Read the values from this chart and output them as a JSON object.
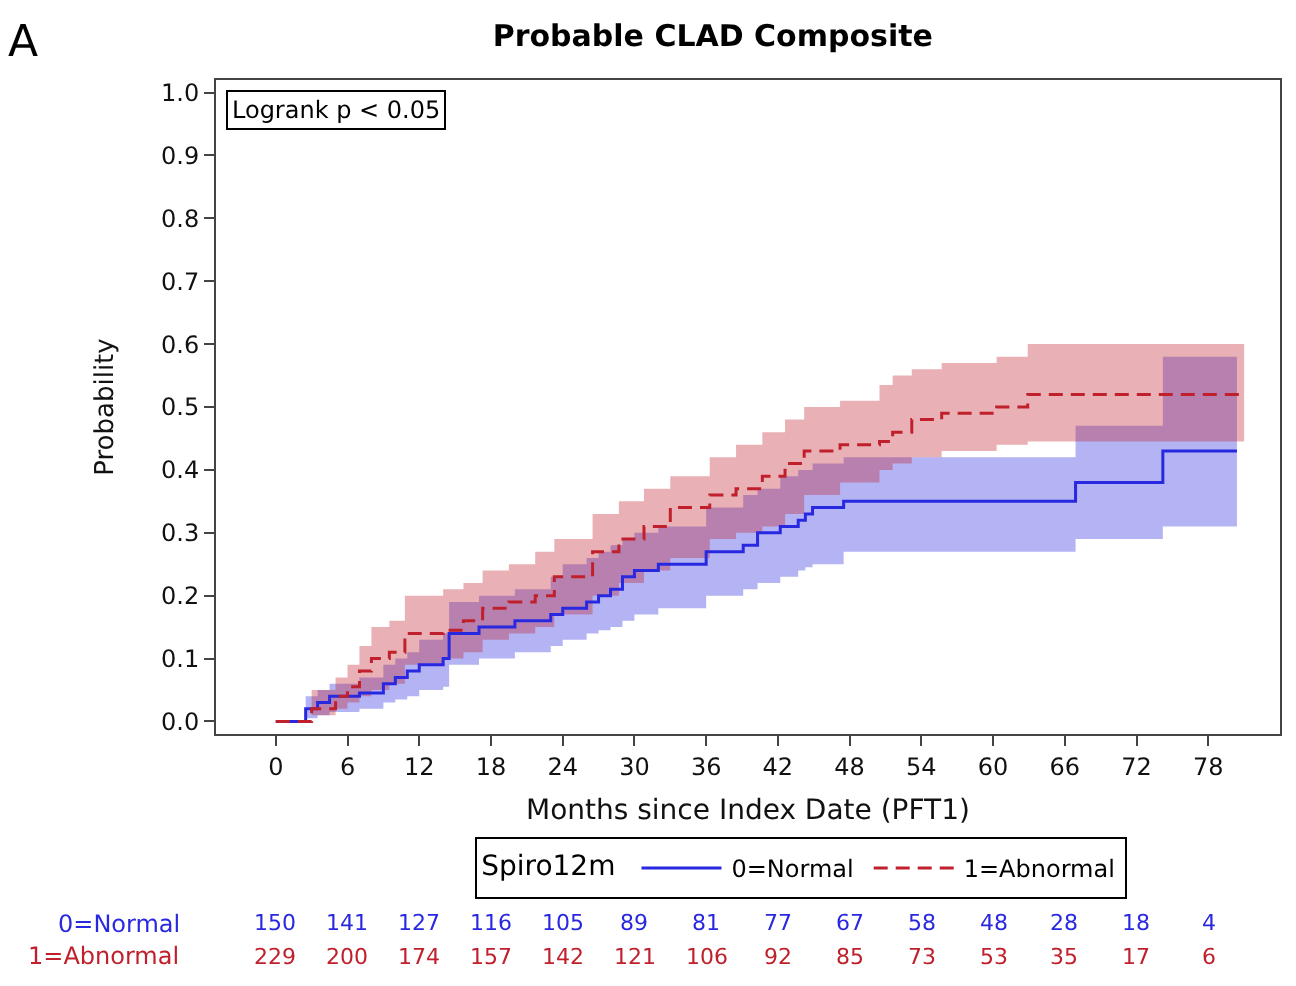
{
  "chart_data": {
    "type": "step",
    "title": "Probable CLAD Composite",
    "xlabel": "Months since Index Date (PFT1)",
    "ylabel": "Probability",
    "legend_title": "Spiro12m",
    "legend": "bottom",
    "xlim": [
      -5,
      84
    ],
    "xticks": [
      0,
      6,
      12,
      18,
      24,
      30,
      36,
      42,
      48,
      54,
      60,
      66,
      72,
      78
    ],
    "ylim": [
      -0.02,
      1.02
    ],
    "yticks": [
      {
        "value": 0,
        "label": "0.0"
      },
      0.1,
      0.2,
      0.3,
      0.4,
      0.5,
      0.6,
      0.7,
      0.8,
      0.9,
      {
        "value": 1,
        "label": "1.0"
      }
    ],
    "series": [
      {
        "name": "0=Normal",
        "color": "#2828e0",
        "line_style": "solid",
        "x": [
          0,
          2.3,
          2.5,
          3.5,
          4.5,
          7,
          9,
          10,
          11,
          12,
          14,
          14.5,
          17,
          20,
          23,
          24,
          26,
          27,
          28,
          29,
          30,
          32,
          36,
          39.1,
          40.3,
          42.2,
          43.7,
          44.3,
          44.9,
          47.5,
          66.9,
          74.2,
          80.4
        ],
        "values": [
          0,
          0,
          0.02,
          0.03,
          0.04,
          0.045,
          0.06,
          0.07,
          0.08,
          0.09,
          0.1,
          0.14,
          0.15,
          0.16,
          0.17,
          0.18,
          0.19,
          0.2,
          0.21,
          0.23,
          0.24,
          0.25,
          0.27,
          0.28,
          0.3,
          0.31,
          0.32,
          0.33,
          0.34,
          0.35,
          0.38,
          0.43,
          0.43
        ],
        "lower": [
          0,
          0,
          0.005,
          0.01,
          0.015,
          0.02,
          0.03,
          0.035,
          0.04,
          0.05,
          0.055,
          0.09,
          0.1,
          0.11,
          0.12,
          0.13,
          0.14,
          0.145,
          0.15,
          0.16,
          0.17,
          0.18,
          0.2,
          0.21,
          0.22,
          0.23,
          0.24,
          0.245,
          0.25,
          0.27,
          0.29,
          0.31,
          0.31
        ],
        "upper": [
          0,
          0,
          0.04,
          0.05,
          0.06,
          0.07,
          0.09,
          0.1,
          0.11,
          0.13,
          0.14,
          0.19,
          0.2,
          0.21,
          0.23,
          0.25,
          0.26,
          0.27,
          0.28,
          0.29,
          0.3,
          0.31,
          0.34,
          0.36,
          0.37,
          0.39,
          0.4,
          0.4,
          0.41,
          0.42,
          0.47,
          0.58,
          0.58
        ]
      },
      {
        "name": "1=Abnormal",
        "color": "#c0202c",
        "line_style": "dashed",
        "x": [
          0,
          2.3,
          3,
          5,
          6,
          7,
          8,
          9.5,
          10.8,
          14,
          15.7,
          17.3,
          19.5,
          21.7,
          23.3,
          26.5,
          28.7,
          30.8,
          33,
          36.3,
          38.5,
          40.7,
          42.6,
          44.2,
          47.2,
          50.5,
          51.6,
          53.2,
          55.7,
          60.3,
          62.9,
          81
        ],
        "values": [
          0,
          0,
          0.02,
          0.04,
          0.055,
          0.08,
          0.1,
          0.11,
          0.14,
          0.145,
          0.16,
          0.18,
          0.19,
          0.2,
          0.23,
          0.27,
          0.29,
          0.31,
          0.34,
          0.36,
          0.37,
          0.39,
          0.41,
          0.43,
          0.44,
          0.445,
          0.46,
          0.48,
          0.49,
          0.5,
          0.52,
          0.52
        ],
        "lower": [
          0,
          0,
          0.01,
          0.02,
          0.03,
          0.04,
          0.05,
          0.06,
          0.09,
          0.1,
          0.11,
          0.13,
          0.14,
          0.15,
          0.17,
          0.2,
          0.22,
          0.24,
          0.26,
          0.29,
          0.3,
          0.31,
          0.33,
          0.36,
          0.38,
          0.4,
          0.41,
          0.42,
          0.43,
          0.44,
          0.445,
          0.445
        ],
        "upper": [
          0,
          0,
          0.05,
          0.07,
          0.09,
          0.12,
          0.15,
          0.16,
          0.2,
          0.21,
          0.22,
          0.24,
          0.25,
          0.27,
          0.29,
          0.33,
          0.35,
          0.37,
          0.39,
          0.42,
          0.44,
          0.46,
          0.48,
          0.5,
          0.51,
          0.535,
          0.55,
          0.56,
          0.57,
          0.58,
          0.6,
          0.6
        ]
      }
    ],
    "annotations": [
      "A",
      "Logrank p < 0.05",
      "0=Normal",
      "150",
      "141",
      "127",
      "116",
      "105",
      "89",
      "81",
      "77",
      "67",
      "58",
      "48",
      "28",
      "18",
      "4",
      "1=Abnormal",
      "229",
      "200",
      "174",
      "157",
      "142",
      "121",
      "106",
      "92",
      "85",
      "73",
      "53",
      "35",
      "17",
      "6"
    ]
  }
}
